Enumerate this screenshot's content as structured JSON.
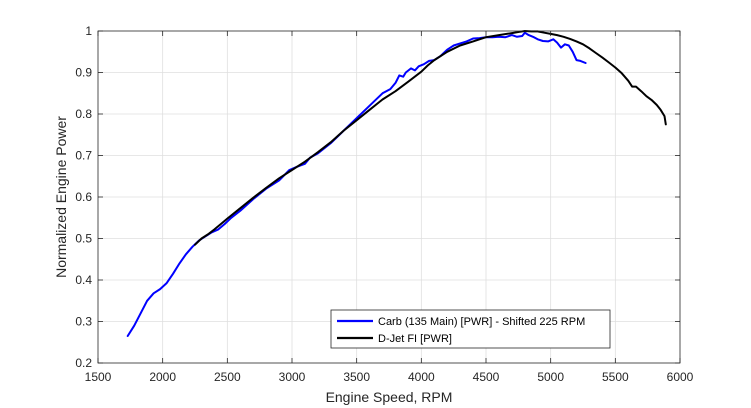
{
  "chart_data": {
    "type": "line",
    "title": "",
    "xlabel": "Engine Speed, RPM",
    "ylabel": "Normalized Engine Power",
    "xlim": [
      1500,
      6000
    ],
    "ylim": [
      0.2,
      1
    ],
    "xticks": [
      1500,
      2000,
      2500,
      3000,
      3500,
      4000,
      4500,
      5000,
      5500,
      6000
    ],
    "yticks": [
      0.2,
      0.3,
      0.4,
      0.5,
      0.6,
      0.7,
      0.8,
      0.9,
      1
    ],
    "xtick_labels": [
      "1500",
      "2000",
      "2500",
      "3000",
      "3500",
      "4000",
      "4500",
      "5000",
      "5500",
      "6000"
    ],
    "ytick_labels": [
      "0.2",
      "0.3",
      "0.4",
      "0.5",
      "0.6",
      "0.7",
      "0.8",
      "0.9",
      "1"
    ],
    "grid": true,
    "legend_position": "bottom-right",
    "series": [
      {
        "name": "Carb (135 Main) [PWR] - Shifted 225 RPM",
        "color": "#0000ff",
        "x": [
          1730,
          1780,
          1830,
          1880,
          1930,
          1980,
          2030,
          2080,
          2130,
          2180,
          2230,
          2280,
          2330,
          2380,
          2430,
          2480,
          2530,
          2600,
          2700,
          2800,
          2900,
          2980,
          3040,
          3100,
          3140,
          3200,
          3300,
          3400,
          3500,
          3600,
          3700,
          3760,
          3800,
          3830,
          3860,
          3880,
          3920,
          3950,
          3980,
          4020,
          4060,
          4100,
          4150,
          4200,
          4250,
          4300,
          4350,
          4400,
          4450,
          4500,
          4550,
          4600,
          4650,
          4700,
          4740,
          4780,
          4800,
          4830,
          4870,
          4900,
          4940,
          4980,
          5020,
          5050,
          5080,
          5110,
          5140,
          5170,
          5200,
          5230,
          5270
        ],
        "y": [
          0.265,
          0.29,
          0.32,
          0.35,
          0.368,
          0.378,
          0.392,
          0.415,
          0.44,
          0.462,
          0.48,
          0.495,
          0.505,
          0.515,
          0.522,
          0.535,
          0.55,
          0.567,
          0.595,
          0.62,
          0.64,
          0.665,
          0.673,
          0.68,
          0.695,
          0.705,
          0.73,
          0.76,
          0.79,
          0.82,
          0.85,
          0.86,
          0.875,
          0.893,
          0.89,
          0.9,
          0.91,
          0.905,
          0.915,
          0.92,
          0.928,
          0.93,
          0.94,
          0.955,
          0.965,
          0.97,
          0.975,
          0.982,
          0.983,
          0.985,
          0.985,
          0.986,
          0.985,
          0.99,
          0.986,
          0.988,
          0.996,
          0.99,
          0.985,
          0.98,
          0.976,
          0.975,
          0.98,
          0.972,
          0.96,
          0.968,
          0.965,
          0.95,
          0.93,
          0.928,
          0.923
        ]
      },
      {
        "name": "D-Jet FI [PWR]",
        "color": "#000000",
        "x": [
          2250,
          2300,
          2350,
          2400,
          2450,
          2500,
          2600,
          2700,
          2800,
          2900,
          3000,
          3100,
          3200,
          3300,
          3400,
          3500,
          3600,
          3700,
          3800,
          3900,
          4000,
          4050,
          4100,
          4200,
          4300,
          4400,
          4500,
          4600,
          4700,
          4760,
          4800,
          4850,
          4900,
          4950,
          5000,
          5050,
          5100,
          5150,
          5200,
          5250,
          5300,
          5350,
          5400,
          5450,
          5500,
          5550,
          5600,
          5630,
          5660,
          5700,
          5740,
          5780,
          5820,
          5850,
          5880,
          5890
        ],
        "y": [
          0.485,
          0.5,
          0.51,
          0.522,
          0.535,
          0.548,
          0.573,
          0.598,
          0.622,
          0.645,
          0.665,
          0.685,
          0.708,
          0.732,
          0.76,
          0.785,
          0.81,
          0.835,
          0.855,
          0.878,
          0.902,
          0.917,
          0.93,
          0.95,
          0.965,
          0.975,
          0.985,
          0.99,
          0.995,
          0.998,
          1.0,
          0.999,
          0.999,
          0.996,
          0.993,
          0.99,
          0.986,
          0.981,
          0.975,
          0.968,
          0.958,
          0.947,
          0.936,
          0.924,
          0.912,
          0.898,
          0.88,
          0.866,
          0.866,
          0.855,
          0.843,
          0.834,
          0.822,
          0.81,
          0.795,
          0.775
        ]
      }
    ]
  }
}
